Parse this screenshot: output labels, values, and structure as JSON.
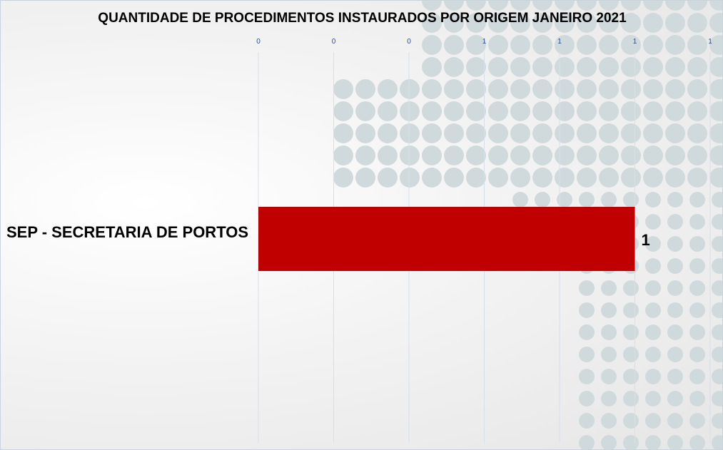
{
  "chart_data": {
    "type": "bar",
    "orientation": "horizontal",
    "title": "QUANTIDADE DE PROCEDIMENTOS INSTAURADOS POR ORIGEM JANEIRO 2021",
    "categories": [
      "SEP - SECRETARIA DE PORTOS"
    ],
    "values": [
      1
    ],
    "data_labels": [
      "1"
    ],
    "xlim": [
      0,
      1.2
    ],
    "x_ticks": [
      0,
      0.2,
      0.4,
      0.6,
      0.8,
      1.0,
      1.2
    ],
    "x_tick_labels": [
      "0",
      "0",
      "0",
      "1",
      "1",
      "1",
      "1"
    ],
    "x_axis_position": "top",
    "grid": true,
    "legend": "none",
    "colors": {
      "bar": "#c00000",
      "tick_label": "#1f4e99",
      "grid": "#d6e0ec"
    }
  }
}
